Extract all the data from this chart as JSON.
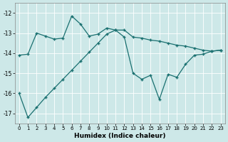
{
  "xlabel": "Humidex (Indice chaleur)",
  "background_color": "#cde8e8",
  "grid_color": "#ffffff",
  "line_color": "#1a7070",
  "xlim": [
    -0.5,
    23.5
  ],
  "ylim": [
    -17.5,
    -11.5
  ],
  "yticks": [
    -17,
    -16,
    -15,
    -14,
    -13,
    -12
  ],
  "xticks": [
    0,
    1,
    2,
    3,
    4,
    5,
    6,
    7,
    8,
    9,
    10,
    11,
    12,
    13,
    14,
    15,
    16,
    17,
    18,
    19,
    20,
    21,
    22,
    23
  ],
  "line1_x": [
    0,
    1,
    2,
    3,
    4,
    5,
    6,
    7,
    8,
    9,
    10,
    11,
    12,
    13,
    14,
    15,
    16,
    17,
    18,
    19,
    20,
    21,
    22,
    23
  ],
  "line1_y": [
    -14.1,
    -14.05,
    -13.0,
    -13.15,
    -13.3,
    -13.25,
    -12.15,
    -12.55,
    -13.15,
    -13.05,
    -12.75,
    -12.85,
    -12.85,
    -13.2,
    -13.25,
    -13.35,
    -13.4,
    -13.5,
    -13.6,
    -13.65,
    -13.75,
    -13.85,
    -13.9,
    -13.85
  ],
  "line2_x": [
    0,
    1,
    2,
    3,
    4,
    5,
    6,
    7,
    8,
    9,
    10,
    11,
    12,
    13,
    14,
    15,
    16,
    17,
    18,
    19,
    20,
    21,
    22,
    23
  ],
  "line2_y": [
    -16.0,
    -17.2,
    -16.7,
    -16.2,
    -15.75,
    -15.3,
    -14.85,
    -14.4,
    -13.95,
    -13.5,
    -13.05,
    -12.85,
    -13.2,
    -15.0,
    -15.3,
    -15.1,
    -16.3,
    -15.05,
    -15.2,
    -14.55,
    -14.1,
    -14.05,
    -13.9,
    -13.85
  ]
}
